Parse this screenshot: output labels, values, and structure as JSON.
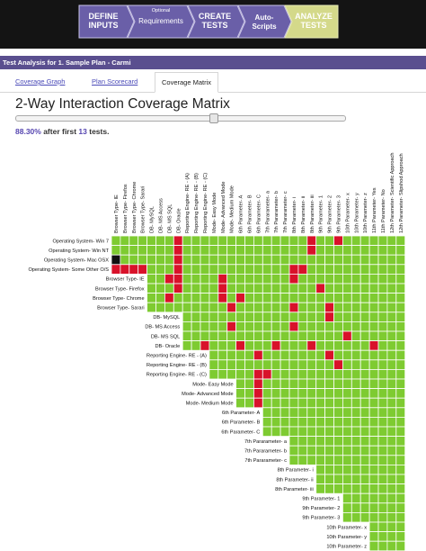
{
  "steps": [
    {
      "line1": "DEFINE",
      "line2": "INPUTS",
      "tag": ""
    },
    {
      "line1": "Requirements",
      "line2": "",
      "tag": "Optional"
    },
    {
      "line1": "CREATE",
      "line2": "TESTS",
      "tag": ""
    },
    {
      "line1": "Auto-",
      "line2": "Scripts",
      "tag": ""
    },
    {
      "line1": "ANALYZE",
      "line2": "TESTS",
      "tag": ""
    }
  ],
  "colors": {
    "step_purple": "#6a5fa8",
    "step_active": "#d4d98a",
    "hit": "#7ecb31",
    "miss": "#d8122a",
    "self": "#111111",
    "bar": "#5a4f8f"
  },
  "analysis_title": "Test Analysis for 1. Sample Plan - Carmi",
  "tabs": [
    "Coverage Graph",
    "Plan Scorecard",
    "Coverage Matrix"
  ],
  "active_tab": 2,
  "page_title": "2-Way Interaction Coverage Matrix",
  "slider_value": 0.6,
  "coverage": {
    "percent": "88.30%",
    "middle": " after first ",
    "count": "13",
    "end": " tests."
  },
  "matrix": {
    "columns": [
      "Browser Type- IE",
      "Browser Type- Firefox",
      "Browser Type- Chrome",
      "Browser Type- Sarari",
      "DB- MySQL",
      "DB- MS Access",
      "DB- MS SQL",
      "DB- Oracle",
      "Reporting Engine- RE - (A)",
      "Reporting Engine- RE - (B)",
      "Reporting Engine- RE - (C)",
      "Mode- Easy Mode",
      "Mode- Advanced Mode",
      "Mode- Medium Mode",
      "6th Parameter- A",
      "6th Parameter- B",
      "6th Parameter- C",
      "7th Pararameter- a",
      "7th Pararameter- b",
      "7th Pararameter- c",
      "8th Parameter- i",
      "8th Parameter- ii",
      "8th Parameter- iii",
      "9th Parameter- 1",
      "9th Parameter- 2",
      "9th Parameter- 3",
      "10th Parameter- x",
      "10th Parameter- y",
      "10th Parameter- z",
      "11th Parameter- Yes",
      "11th Parameter- No",
      "12th Parameter- Scientific Approach",
      "12th Parameter- Slipshod Approach"
    ],
    "rows": [
      {
        "label": "Operating System- Win 7",
        "start": 0,
        "miss": [
          7,
          22,
          25
        ]
      },
      {
        "label": "Operating System- Win NT",
        "start": 0,
        "miss": [
          7,
          22
        ]
      },
      {
        "label": "Operating System- Mac OSX",
        "start": 0,
        "self": [
          0
        ],
        "miss": [
          7
        ]
      },
      {
        "label": "Operating System- Some Other O/S",
        "start": 0,
        "miss": [
          0,
          1,
          2,
          3,
          7,
          20,
          21
        ]
      },
      {
        "label": "Browser Type- IE",
        "start": 4,
        "miss": [
          6,
          7,
          12,
          20
        ]
      },
      {
        "label": "Browser Type- Firefox",
        "start": 4,
        "miss": [
          7,
          12,
          23
        ]
      },
      {
        "label": "Browser Type- Chrome",
        "start": 4,
        "miss": [
          6,
          12,
          14
        ]
      },
      {
        "label": "Browser Type- Sarari",
        "start": 4,
        "miss": [
          13,
          20,
          24
        ]
      },
      {
        "label": "DB- MySQL",
        "start": 8,
        "miss": [
          24
        ]
      },
      {
        "label": "DB- MS Access",
        "start": 8,
        "miss": [
          13,
          20
        ]
      },
      {
        "label": "DB- MS SQL",
        "start": 8,
        "miss": [
          26
        ]
      },
      {
        "label": "DB- Oracle",
        "start": 8,
        "miss": [
          10,
          14,
          18,
          22,
          29
        ]
      },
      {
        "label": "Reporting Engine- RE - (A)",
        "start": 11,
        "miss": [
          16,
          24
        ]
      },
      {
        "label": "Reporting Engine- RE - (B)",
        "start": 11,
        "miss": [
          25
        ]
      },
      {
        "label": "Reporting Engine- RE - (C)",
        "start": 11,
        "miss": [
          16,
          17
        ]
      },
      {
        "label": "Mode- Easy Mode",
        "start": 14,
        "miss": [
          16
        ]
      },
      {
        "label": "Mode- Advanced Mode",
        "start": 14,
        "miss": [
          16
        ]
      },
      {
        "label": "Mode- Medium Mode",
        "start": 14,
        "miss": [
          16
        ]
      },
      {
        "label": "6th Parameter- A",
        "start": 17,
        "miss": []
      },
      {
        "label": "6th Parameter- B",
        "start": 17,
        "miss": []
      },
      {
        "label": "6th Parameter- C",
        "start": 17,
        "miss": []
      },
      {
        "label": "7th Pararameter- a",
        "start": 20,
        "miss": []
      },
      {
        "label": "7th Pararameter- b",
        "start": 20,
        "miss": []
      },
      {
        "label": "7th Pararameter- c",
        "start": 20,
        "miss": []
      },
      {
        "label": "8th Parameter- i",
        "start": 23,
        "miss": []
      },
      {
        "label": "8th Parameter- ii",
        "start": 23,
        "miss": []
      },
      {
        "label": "8th Parameter- iii",
        "start": 23,
        "miss": []
      },
      {
        "label": "9th Parameter- 1",
        "start": 26,
        "miss": []
      },
      {
        "label": "9th Parameter- 2",
        "start": 26,
        "miss": []
      },
      {
        "label": "9th Parameter- 3",
        "start": 26,
        "miss": []
      },
      {
        "label": "10th Parameter- x",
        "start": 29,
        "miss": []
      },
      {
        "label": "10th Parameter- y",
        "start": 29,
        "miss": []
      },
      {
        "label": "10th Parameter- z",
        "start": 29,
        "miss": []
      }
    ]
  }
}
